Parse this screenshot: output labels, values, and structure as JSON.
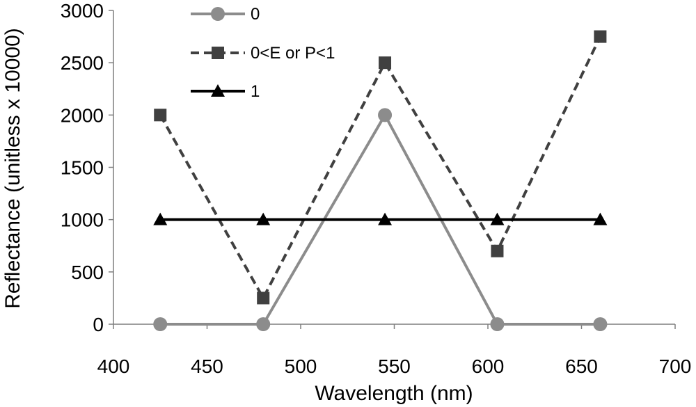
{
  "chart_data": {
    "type": "line",
    "title": "",
    "xlabel": "Wavelength (nm)",
    "ylabel": "Reflectance (unitless x 10000)",
    "xlim": [
      400,
      700
    ],
    "ylim": [
      0,
      3000
    ],
    "x_ticks": [
      400,
      450,
      500,
      550,
      600,
      650,
      700
    ],
    "y_ticks": [
      0,
      500,
      1000,
      1500,
      2000,
      2500,
      3000
    ],
    "x_tick_labels": [
      "400",
      "450",
      "500",
      "550",
      "600",
      "650",
      "700"
    ],
    "y_tick_labels": [
      "0",
      "500",
      "1000",
      "1500",
      "2000",
      "2500",
      "3000"
    ],
    "grid": false,
    "legend_position": "top-left",
    "x": [
      425,
      480,
      545,
      605,
      660
    ],
    "series": [
      {
        "name": "0",
        "values": [
          0,
          0,
          2000,
          0,
          0
        ],
        "color": "#8c8c8c",
        "line_style": "solid",
        "marker": "circle"
      },
      {
        "name": "0<E or P<1",
        "values": [
          2000,
          250,
          2500,
          700,
          2750
        ],
        "color": "#404040",
        "line_style": "dashed",
        "marker": "square"
      },
      {
        "name": "1",
        "values": [
          1000,
          1000,
          1000,
          1000,
          1000
        ],
        "color": "#000000",
        "line_style": "solid",
        "marker": "triangle"
      }
    ]
  }
}
